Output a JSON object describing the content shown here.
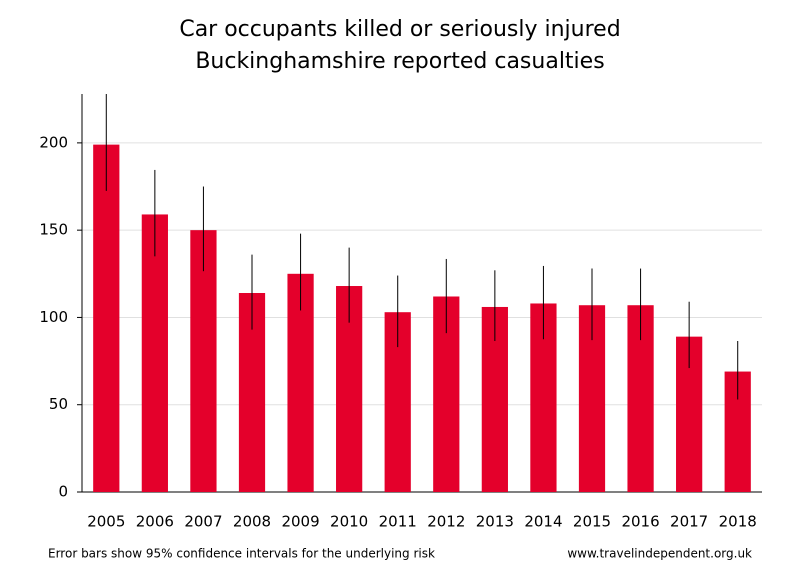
{
  "chart_data": {
    "type": "bar",
    "title": "Car occupants killed or seriously injured",
    "subtitle": "Buckinghamshire reported casualties",
    "note": "Error bars show 95% confidence intervals for the underlying risk",
    "source": "www.travelindependent.org.uk",
    "categories": [
      "2005",
      "2006",
      "2007",
      "2008",
      "2009",
      "2010",
      "2011",
      "2012",
      "2013",
      "2014",
      "2015",
      "2016",
      "2017",
      "2018"
    ],
    "values": [
      199,
      159,
      150,
      114,
      125,
      118,
      103,
      112,
      106,
      108,
      107,
      107,
      89,
      69
    ],
    "lower": [
      172.5,
      135,
      126.5,
      93,
      104,
      97,
      83,
      91,
      86.5,
      87.5,
      87,
      87,
      71,
      53
    ],
    "upper": [
      228,
      184.5,
      175,
      136,
      148,
      140,
      124,
      133.5,
      127,
      129.5,
      128,
      128,
      109,
      86.5
    ],
    "color": "#e4002b",
    "error_color": "#000000",
    "ylim": [
      0,
      228
    ],
    "yticks": [
      0,
      50,
      100,
      150,
      200
    ],
    "grid": true
  }
}
